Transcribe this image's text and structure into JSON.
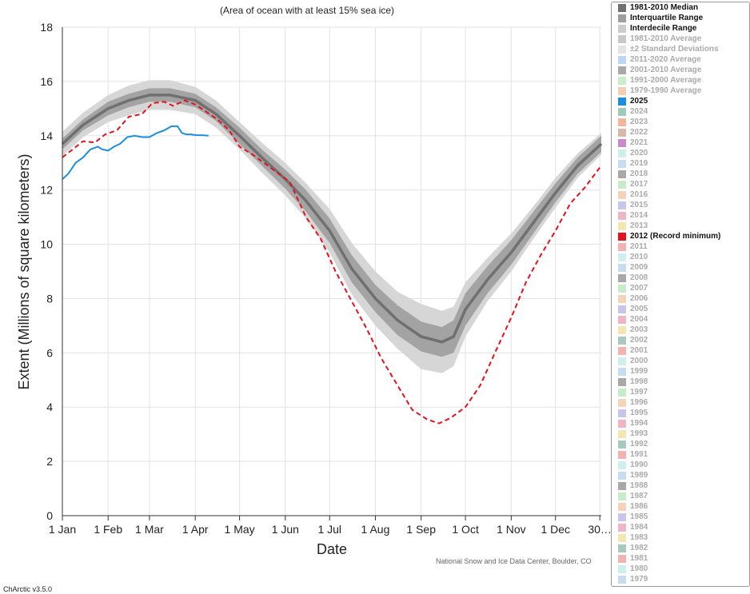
{
  "chart_data": {
    "type": "line",
    "title": "",
    "subtitle": "(Area of ocean with at least 15% sea ice)",
    "xlabel": "Date",
    "ylabel": "Extent (Millions of square kilometers)",
    "ylim": [
      0,
      18
    ],
    "yticks": [
      0,
      2,
      4,
      6,
      8,
      10,
      12,
      14,
      16,
      18
    ],
    "xticks": [
      {
        "day": 1,
        "label": "1 Jan"
      },
      {
        "day": 32,
        "label": "1 Feb"
      },
      {
        "day": 60,
        "label": "1 Mar"
      },
      {
        "day": 91,
        "label": "1 Apr"
      },
      {
        "day": 121,
        "label": "1 May"
      },
      {
        "day": 152,
        "label": "1 Jun"
      },
      {
        "day": 182,
        "label": "1 Jul"
      },
      {
        "day": 213,
        "label": "1 Aug"
      },
      {
        "day": 244,
        "label": "1 Sep"
      },
      {
        "day": 274,
        "label": "1 Oct"
      },
      {
        "day": 305,
        "label": "1 Nov"
      },
      {
        "day": 335,
        "label": "1 Dec"
      },
      {
        "day": 365,
        "label": "30…"
      }
    ],
    "grid": true,
    "legend_placement": "right",
    "median": {
      "day": [
        1,
        15,
        32,
        46,
        60,
        74,
        91,
        105,
        121,
        136,
        152,
        166,
        182,
        197,
        213,
        228,
        244,
        258,
        266,
        274,
        289,
        305,
        320,
        335,
        350,
        366
      ],
      "value": [
        13.7,
        14.4,
        15.0,
        15.3,
        15.5,
        15.5,
        15.3,
        14.8,
        14.0,
        13.2,
        12.4,
        11.6,
        10.5,
        9.1,
        8.0,
        7.2,
        6.6,
        6.4,
        6.6,
        7.6,
        8.7,
        9.7,
        10.8,
        11.9,
        12.9,
        13.7
      ],
      "iqr_half": [
        0.2,
        0.2,
        0.25,
        0.25,
        0.25,
        0.25,
        0.25,
        0.25,
        0.3,
        0.3,
        0.35,
        0.4,
        0.45,
        0.5,
        0.5,
        0.55,
        0.55,
        0.55,
        0.6,
        0.6,
        0.5,
        0.45,
        0.4,
        0.35,
        0.3,
        0.3
      ],
      "idr_half": [
        0.45,
        0.45,
        0.5,
        0.55,
        0.55,
        0.55,
        0.5,
        0.5,
        0.5,
        0.55,
        0.6,
        0.65,
        0.8,
        0.95,
        1.0,
        1.05,
        1.2,
        1.15,
        1.1,
        1.0,
        0.8,
        0.7,
        0.6,
        0.55,
        0.45,
        0.4
      ]
    },
    "series": [
      {
        "name": "2025",
        "color": "#1a8fe0",
        "day": [
          1,
          5,
          10,
          15,
          20,
          25,
          28,
          32,
          36,
          40,
          45,
          50,
          55,
          60,
          65,
          70,
          75,
          79,
          82,
          85,
          88,
          92,
          96,
          100
        ],
        "value": [
          12.4,
          12.6,
          13.0,
          13.2,
          13.5,
          13.6,
          13.5,
          13.45,
          13.6,
          13.7,
          13.95,
          14.0,
          13.95,
          13.95,
          14.1,
          14.2,
          14.35,
          14.35,
          14.1,
          14.05,
          14.05,
          14.02,
          14.02,
          14.0
        ]
      },
      {
        "name": "2012 (Record minimum)",
        "color": "#e8101a",
        "day": [
          1,
          8,
          15,
          23,
          30,
          38,
          46,
          55,
          62,
          70,
          76,
          84,
          91,
          98,
          106,
          114,
          121,
          130,
          140,
          150,
          155,
          166,
          176,
          186,
          197,
          207,
          217,
          228,
          238,
          248,
          256,
          264,
          274,
          284,
          294,
          305,
          315,
          325,
          335,
          345,
          355,
          366
        ],
        "value": [
          13.2,
          13.5,
          13.8,
          13.75,
          14.05,
          14.2,
          14.7,
          14.8,
          15.2,
          15.25,
          15.1,
          15.3,
          15.15,
          14.9,
          14.6,
          14.2,
          13.6,
          13.3,
          12.9,
          12.5,
          12.3,
          11.0,
          10.2,
          9.0,
          7.9,
          6.9,
          5.8,
          4.8,
          3.9,
          3.55,
          3.4,
          3.6,
          4.0,
          4.8,
          6.0,
          7.3,
          8.6,
          9.6,
          10.5,
          11.5,
          12.1,
          12.9
        ]
      }
    ]
  },
  "legend": {
    "items": [
      {
        "label": "1981-2010 Median",
        "color": "#707070",
        "active": true
      },
      {
        "label": "Interquartile Range",
        "color": "#9e9e9e",
        "active": true
      },
      {
        "label": "Interdecile Range",
        "color": "#cccccc",
        "active": true
      },
      {
        "label": "1981-2010 Average",
        "color": "#c8c8c8",
        "active": false
      },
      {
        "label": "±2 Standard Deviations",
        "color": "#e4e4e4",
        "active": false
      },
      {
        "label": "2011-2020 Average",
        "color": "#bcd7f3",
        "active": false
      },
      {
        "label": "2001-2010 Average",
        "color": "#a8a8a8",
        "active": false
      },
      {
        "label": "1991-2000 Average",
        "color": "#c9efc9",
        "active": false
      },
      {
        "label": "1979-1990 Average",
        "color": "#f6cfb0",
        "active": false
      },
      {
        "label": "2025",
        "color": "#1a8fe0",
        "active": true
      },
      {
        "label": "2024",
        "color": "#9fc9b9",
        "active": false
      },
      {
        "label": "2023",
        "color": "#f5b79c",
        "active": false
      },
      {
        "label": "2022",
        "color": "#d8b8a8",
        "active": false
      },
      {
        "label": "2021",
        "color": "#cc88cc",
        "active": false
      },
      {
        "label": "2020",
        "color": "#cdf0ec",
        "active": false
      },
      {
        "label": "2019",
        "color": "#c6dcf0",
        "active": false
      },
      {
        "label": "2018",
        "color": "#a8a8a8",
        "active": false
      },
      {
        "label": "2017",
        "color": "#c7ecc7",
        "active": false
      },
      {
        "label": "2016",
        "color": "#f6d3b8",
        "active": false
      },
      {
        "label": "2015",
        "color": "#c8c4ec",
        "active": false
      },
      {
        "label": "2014",
        "color": "#f0b4c4",
        "active": false
      },
      {
        "label": "2013",
        "color": "#f3e6b0",
        "active": false
      },
      {
        "label": "2012 (Record minimum)",
        "color": "#e8101a",
        "active": true
      },
      {
        "label": "2011",
        "color": "#f3b3b3",
        "active": false
      },
      {
        "label": "2010",
        "color": "#cdf0ec",
        "active": false
      },
      {
        "label": "2009",
        "color": "#c6dcf0",
        "active": false
      },
      {
        "label": "2008",
        "color": "#a8a8a8",
        "active": false
      },
      {
        "label": "2007",
        "color": "#c7ecc7",
        "active": false
      },
      {
        "label": "2006",
        "color": "#f6d3b8",
        "active": false
      },
      {
        "label": "2005",
        "color": "#c8c4ec",
        "active": false
      },
      {
        "label": "2004",
        "color": "#f0b4c4",
        "active": false
      },
      {
        "label": "2003",
        "color": "#f3e6b0",
        "active": false
      },
      {
        "label": "2002",
        "color": "#a9c9c0",
        "active": false
      },
      {
        "label": "2001",
        "color": "#f3b3b3",
        "active": false
      },
      {
        "label": "2000",
        "color": "#cdf0ec",
        "active": false
      },
      {
        "label": "1999",
        "color": "#c6dcf0",
        "active": false
      },
      {
        "label": "1998",
        "color": "#a8a8a8",
        "active": false
      },
      {
        "label": "1997",
        "color": "#c7ecc7",
        "active": false
      },
      {
        "label": "1996",
        "color": "#f6d3b8",
        "active": false
      },
      {
        "label": "1995",
        "color": "#c8c4ec",
        "active": false
      },
      {
        "label": "1994",
        "color": "#f0b4c4",
        "active": false
      },
      {
        "label": "1993",
        "color": "#f3e6b0",
        "active": false
      },
      {
        "label": "1992",
        "color": "#a9c9c0",
        "active": false
      },
      {
        "label": "1991",
        "color": "#f3b3b3",
        "active": false
      },
      {
        "label": "1990",
        "color": "#cdf0ec",
        "active": false
      },
      {
        "label": "1989",
        "color": "#c6dcf0",
        "active": false
      },
      {
        "label": "1988",
        "color": "#a8a8a8",
        "active": false
      },
      {
        "label": "1987",
        "color": "#c7ecc7",
        "active": false
      },
      {
        "label": "1986",
        "color": "#f6d3b8",
        "active": false
      },
      {
        "label": "1985",
        "color": "#c8c4ec",
        "active": false
      },
      {
        "label": "1984",
        "color": "#f0b4c4",
        "active": false
      },
      {
        "label": "1983",
        "color": "#f3e6b0",
        "active": false
      },
      {
        "label": "1982",
        "color": "#a9c9c0",
        "active": false
      },
      {
        "label": "1981",
        "color": "#f3b3b3",
        "active": false
      },
      {
        "label": "1980",
        "color": "#cdf0ec",
        "active": false
      },
      {
        "label": "1979",
        "color": "#c6dcf0",
        "active": false
      }
    ]
  },
  "footer": {
    "credit": "National Snow and Ice Data Center, Boulder, CO",
    "version": "ChArctic v3.5.0"
  }
}
